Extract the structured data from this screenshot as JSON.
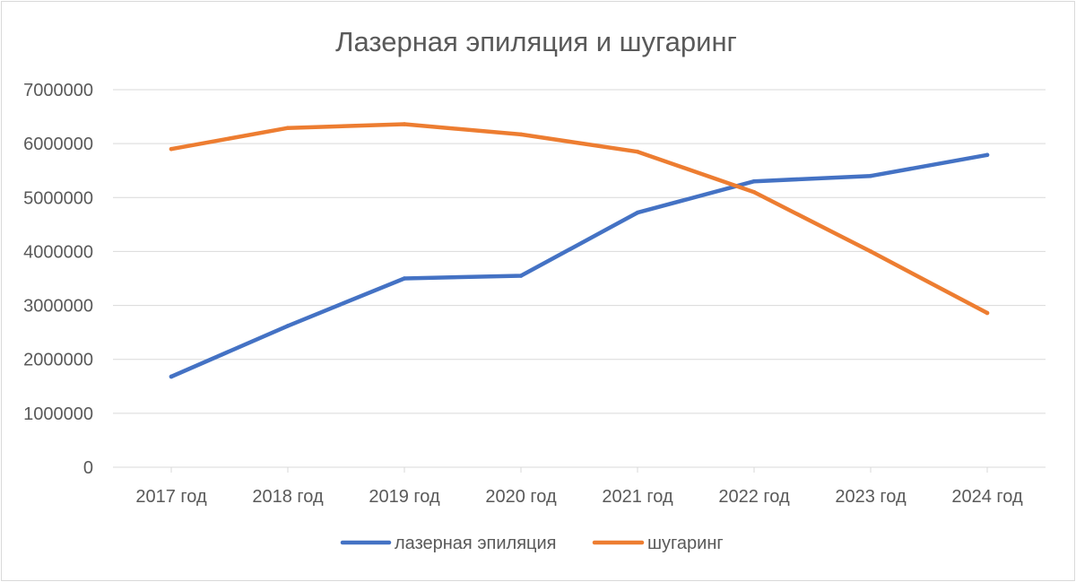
{
  "chart_data": {
    "type": "line",
    "title": "Лазерная эпиляция и шугаринг",
    "categories": [
      "2017 год",
      "2018 год",
      "2019 год",
      "2020 год",
      "2021 год",
      "2022 год",
      "2023 год",
      "2024 год"
    ],
    "series": [
      {
        "name": "лазерная эпиляция",
        "color": "#4472c4",
        "values": [
          1680000,
          2620000,
          3500000,
          3550000,
          4720000,
          5300000,
          5400000,
          5790000
        ]
      },
      {
        "name": "шугаринг",
        "color": "#ed7d31",
        "values": [
          5900000,
          6290000,
          6360000,
          6170000,
          5850000,
          5100000,
          4000000,
          2860000
        ]
      }
    ],
    "y_ticks": [
      "0",
      "1000000",
      "2000000",
      "3000000",
      "4000000",
      "5000000",
      "6000000",
      "7000000"
    ],
    "ylim": [
      0,
      7000000
    ],
    "xlabel": "",
    "ylabel": "",
    "grid": true,
    "legend": "bottom"
  }
}
